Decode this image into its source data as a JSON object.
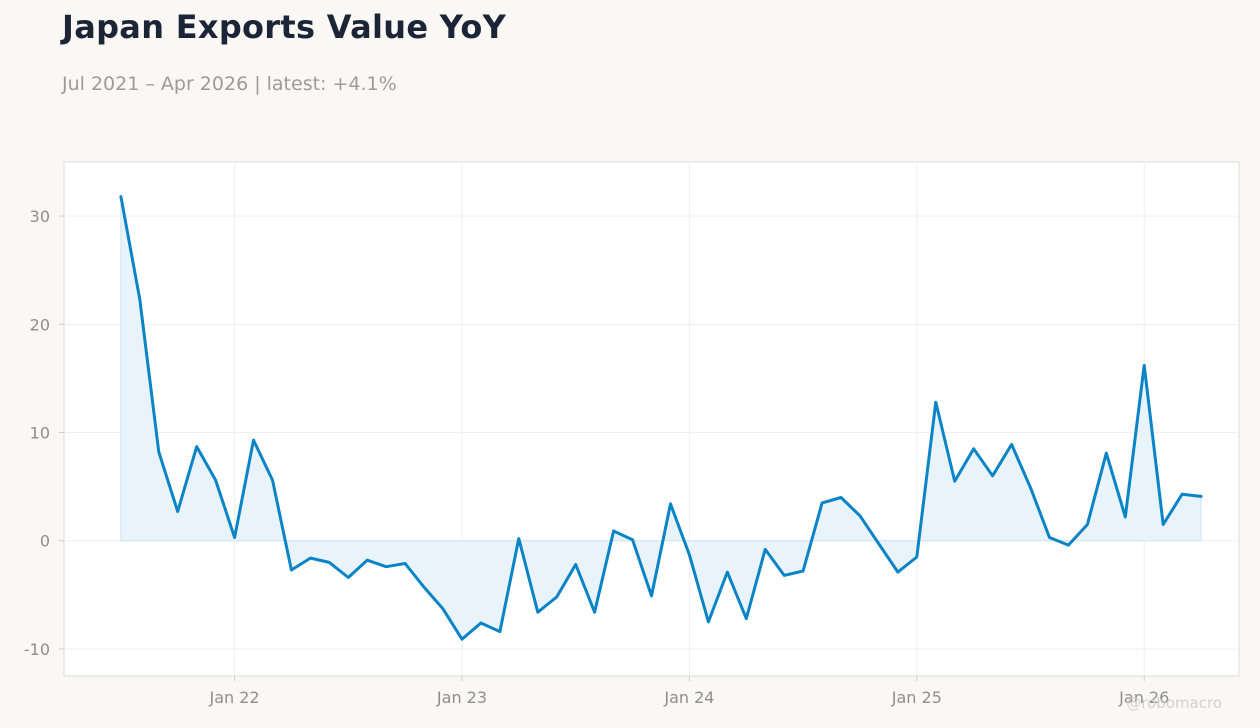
{
  "header": {
    "title": "Japan Exports Value YoY",
    "subtitle": "Jul 2021 – Apr 2026 | latest: +4.1%"
  },
  "watermark": "@robomacro",
  "colors": {
    "background": "#f9f8f5",
    "plot_background": "#ffffff",
    "line": "#0a84c6",
    "area_fill": "#e8f3fb",
    "grid": "#efefef"
  },
  "chart_data": {
    "type": "area",
    "title": "Japan Exports Value YoY",
    "subtitle": "Jul 2021 – Apr 2026 | latest: +4.1%",
    "xlabel": "",
    "ylabel": "",
    "x_start": "2021-07",
    "x_ticks": [
      {
        "label": "Jan 22",
        "date": "2022-01"
      },
      {
        "label": "Jan 23",
        "date": "2023-01"
      },
      {
        "label": "Jan 24",
        "date": "2024-01"
      },
      {
        "label": "Jan 25",
        "date": "2025-01"
      },
      {
        "label": "Jan 26",
        "date": "2026-01"
      }
    ],
    "y_ticks": [
      -10,
      0,
      10,
      20,
      30
    ],
    "ylim": [
      -12.5,
      35
    ],
    "xlim": [
      "2021-04",
      "2026-06"
    ],
    "grid": true,
    "series": [
      {
        "dates": [
          "2021-07",
          "2021-08",
          "2021-09",
          "2021-10",
          "2021-11",
          "2021-12",
          "2022-01",
          "2022-02",
          "2022-03",
          "2022-04",
          "2022-05",
          "2022-06",
          "2022-07",
          "2022-08",
          "2022-09",
          "2022-10",
          "2022-11",
          "2022-12",
          "2023-01",
          "2023-02",
          "2023-03",
          "2023-04",
          "2023-05",
          "2023-06",
          "2023-07",
          "2023-08",
          "2023-09",
          "2023-10",
          "2023-11",
          "2023-12",
          "2024-01",
          "2024-02",
          "2024-03",
          "2024-04",
          "2024-05",
          "2024-06",
          "2024-07",
          "2024-08",
          "2024-09",
          "2024-10",
          "2024-11",
          "2024-12",
          "2025-01",
          "2025-02",
          "2025-03",
          "2025-04",
          "2025-05",
          "2025-06",
          "2025-07",
          "2025-08",
          "2025-09",
          "2025-10",
          "2025-11",
          "2025-12",
          "2026-01",
          "2026-02",
          "2026-03",
          "2026-04"
        ],
        "values": [
          31.8,
          22.3,
          8.2,
          2.7,
          8.7,
          5.6,
          0.3,
          9.3,
          5.6,
          -2.7,
          -1.6,
          -2.0,
          -3.4,
          -1.8,
          -2.4,
          -2.1,
          -4.3,
          -6.3,
          -9.1,
          -7.6,
          -8.4,
          0.2,
          -6.6,
          -5.2,
          -2.2,
          -6.6,
          0.9,
          0.1,
          -5.1,
          3.4,
          -1.3,
          -7.5,
          -2.9,
          -7.2,
          -0.8,
          -3.2,
          -2.8,
          3.5,
          4.0,
          2.3,
          -0.3,
          -2.9,
          -1.5,
          12.8,
          5.5,
          8.5,
          6.0,
          8.9,
          4.9,
          0.3,
          -0.4,
          1.5,
          8.1,
          2.2,
          16.2,
          1.5,
          4.3,
          4.1
        ]
      }
    ]
  }
}
